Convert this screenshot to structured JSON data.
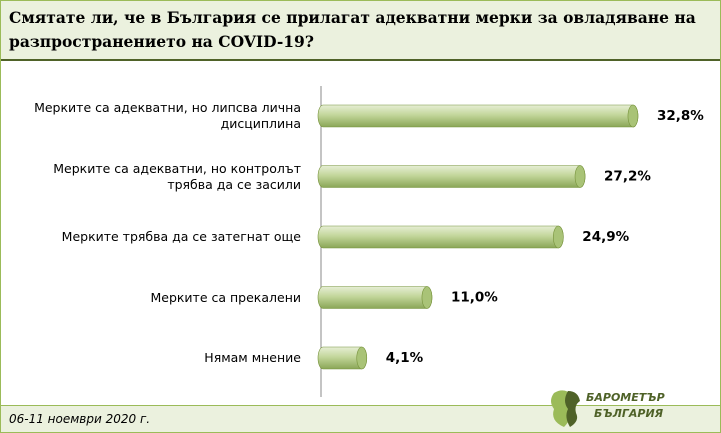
{
  "chart_data": {
    "type": "bar",
    "orientation": "horizontal",
    "title": "Смятате ли, че в България се прилагат адекватни мерки за овладяване на разпространението на COVID-19?",
    "categories": [
      "Мерките са адекватни, но липсва лична дисциплина",
      "Мерките са адекватни, но контролът трябва да се засили",
      "Мерките трябва да се затегнат още",
      "Мерките са прекалени",
      "Нямам мнение"
    ],
    "values": [
      32.8,
      27.2,
      24.9,
      11.0,
      4.1
    ],
    "value_labels": [
      "32,8%",
      "27,2%",
      "24,9%",
      "11,0%",
      "4,1%"
    ],
    "color": "#c3d69b",
    "footnote": "06-11 ноември 2020 г.",
    "logo": {
      "top": "БАРОМЕТЪР",
      "bottom": "БЪЛГАРИЯ"
    }
  }
}
